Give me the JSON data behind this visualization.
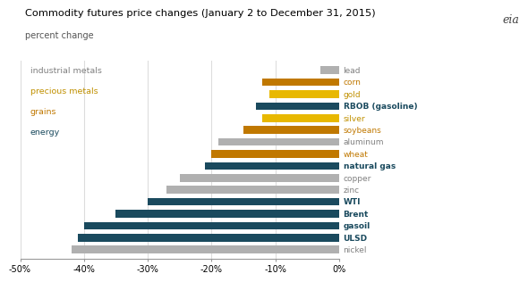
{
  "title": "Commodity futures price changes (January 2 to December 31, 2015)",
  "subtitle": "percent change",
  "categories": [
    "lead",
    "corn",
    "gold",
    "RBOB (gasoline)",
    "silver",
    "soybeans",
    "aluminum",
    "wheat",
    "natural gas",
    "copper",
    "zinc",
    "WTI",
    "Brent",
    "gasoil",
    "ULSD",
    "nickel"
  ],
  "values": [
    -3,
    -12,
    -11,
    -13,
    -12,
    -15,
    -19,
    -20,
    -21,
    -25,
    -27,
    -30,
    -35,
    -40,
    -41,
    -42
  ],
  "colors": [
    "#b0b0b0",
    "#c07800",
    "#e8b800",
    "#1a4a5e",
    "#e8b800",
    "#c07800",
    "#b0b0b0",
    "#c07800",
    "#1a4a5e",
    "#b0b0b0",
    "#b0b0b0",
    "#1a4a5e",
    "#1a4a5e",
    "#1a4a5e",
    "#1a4a5e",
    "#b0b0b0"
  ],
  "label_colors": [
    "#808080",
    "#c07800",
    "#c09000",
    "#1a4a5e",
    "#c09000",
    "#c07800",
    "#808080",
    "#c07800",
    "#1a4a5e",
    "#808080",
    "#808080",
    "#1a4a5e",
    "#1a4a5e",
    "#1a4a5e",
    "#1a4a5e",
    "#808080"
  ],
  "label_bold": [
    false,
    false,
    false,
    true,
    false,
    false,
    false,
    false,
    true,
    false,
    false,
    true,
    true,
    true,
    true,
    false
  ],
  "xlim": [
    -50,
    2
  ],
  "xlim_plot": [
    -50,
    0
  ],
  "xticks": [
    -50,
    -40,
    -30,
    -20,
    -10,
    0
  ],
  "xtick_labels": [
    "-50%",
    "-40%",
    "-30%",
    "-20%",
    "-10%",
    "0%"
  ],
  "legend_items": [
    {
      "label": "industrial metals",
      "color": "#808080"
    },
    {
      "label": "precious metals",
      "color": "#c09000"
    },
    {
      "label": "grains",
      "color": "#c07800"
    },
    {
      "label": "energy",
      "color": "#1a4a5e"
    }
  ],
  "bar_height": 0.65,
  "background_color": "#ffffff",
  "grid_color": "#dddddd"
}
